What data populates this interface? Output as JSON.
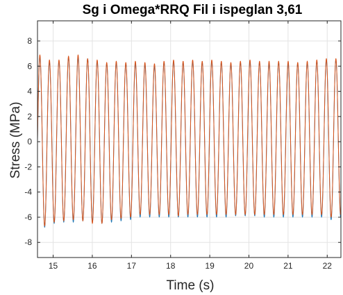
{
  "chart_data": {
    "type": "line",
    "title": "Sg i Omega*RRQ Fil i ispeglan 3,61",
    "xlabel": "Time (s)",
    "ylabel": "Stress (MPa)",
    "xlim": [
      14.6,
      22.35
    ],
    "ylim": [
      -9.2,
      9.6
    ],
    "xticks": [
      15,
      16,
      17,
      18,
      19,
      20,
      21,
      22
    ],
    "yticks": [
      -8,
      -6,
      -4,
      -2,
      0,
      2,
      4,
      6,
      8
    ],
    "grid": true,
    "legend": "none",
    "series": [
      {
        "color": "#1f77b4",
        "signal": {
          "form": "sinusoid",
          "frequency_hz": 4.1,
          "start_time_s": 14.6,
          "mean_mpa": 0.15,
          "peaks_mpa": [
            6.8,
            6.3,
            6.4,
            6.7,
            6.7,
            6.6,
            6.4,
            6.2,
            6.3,
            6.2,
            6.2,
            6.1,
            6.0,
            6.3,
            6.4,
            6.3,
            6.4,
            6.3,
            6.4,
            6.3,
            6.2,
            6.3,
            6.4,
            6.3,
            6.2,
            6.3,
            6.2,
            6.2,
            6.3,
            6.4,
            6.5,
            6.5
          ],
          "troughs_mpa": [
            -6.8,
            -6.5,
            -6.4,
            -6.4,
            -6.3,
            -6.4,
            -6.5,
            -6.4,
            -6.3,
            -6.2,
            -6.0,
            -6.0,
            -6.0,
            -6.0,
            -6.0,
            -6.0,
            -6.0,
            -6.0,
            -6.0,
            -6.0,
            -5.9,
            -5.9,
            -5.9,
            -6.0,
            -6.0,
            -6.0,
            -6.0,
            -6.0,
            -6.0,
            -6.0,
            -6.2,
            -6.0
          ]
        }
      },
      {
        "color": "#d95319",
        "signal": {
          "form": "sinusoid",
          "frequency_hz": 4.1,
          "start_time_s": 14.6,
          "mean_mpa": 0.15,
          "peaks_mpa": [
            6.9,
            6.5,
            6.5,
            6.8,
            6.9,
            6.6,
            6.5,
            6.3,
            6.4,
            6.3,
            6.4,
            6.3,
            6.2,
            6.4,
            6.5,
            6.4,
            6.5,
            6.4,
            6.5,
            6.4,
            6.3,
            6.4,
            6.5,
            6.4,
            6.4,
            6.4,
            6.4,
            6.3,
            6.4,
            6.5,
            6.6,
            6.6
          ],
          "troughs_mpa": [
            -6.7,
            -6.4,
            -6.3,
            -6.2,
            -6.3,
            -6.5,
            -6.5,
            -6.2,
            -6.1,
            -6.0,
            -5.8,
            -5.8,
            -5.8,
            -5.8,
            -5.9,
            -5.8,
            -5.8,
            -5.8,
            -5.8,
            -5.8,
            -5.8,
            -5.8,
            -5.8,
            -5.8,
            -5.8,
            -5.8,
            -5.8,
            -5.8,
            -5.8,
            -5.8,
            -6.0,
            -5.8
          ]
        }
      }
    ]
  }
}
